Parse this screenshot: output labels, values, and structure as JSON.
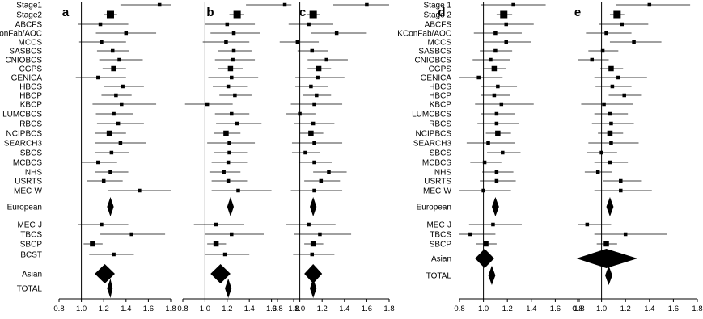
{
  "figure": {
    "left_group_labels": [
      "Stage1",
      "Stage2",
      "ABCFS",
      "KConFab/AOC",
      "MCCS",
      "SASBCS",
      "CNIOBCS",
      "CGPS",
      "GENICA",
      "HBCS",
      "HBCP",
      "KBCP",
      "LUMCBCS",
      "RBCS",
      "NCIPBCS",
      "SEARCH3",
      "SBCS",
      "MCBCS",
      "NHS",
      "USRTS",
      "MEC-W",
      "European",
      "MEC-J",
      "TBCS",
      "SBCP",
      "BCST",
      "Asian",
      "TOTAL"
    ],
    "right_group_labels": [
      "Stage 1",
      "Stage 2",
      "ABCFS",
      "KConFab/AOC",
      "MCCS",
      "SASBCS",
      "CNIOBCS",
      "CGPS",
      "GENICA",
      "HBCS",
      "HBCP",
      "KBCP",
      "LUMCBCS",
      "RBCS",
      "NCIPBCS",
      "SEARCH3",
      "SBCS",
      "MCBCS",
      "NHS",
      "USRTS",
      "MEC-W",
      "European",
      "MEC-J",
      "TBCS",
      "SBCP",
      "Asian",
      "TOTAL"
    ]
  },
  "chart_data": [
    {
      "type": "forest",
      "panel": "a",
      "xlim": [
        0.8,
        1.8
      ],
      "xticks": [
        "0.8",
        "1.0",
        "1.2",
        "1.4",
        "1.6",
        "1.8"
      ],
      "reference_line": 1.0,
      "rows": [
        {
          "study": "Stage1",
          "or": 1.7,
          "lo": 1.35,
          "hi": 1.8
        },
        {
          "study": "Stage2",
          "or": 1.26,
          "lo": 1.2,
          "hi": 1.32
        },
        {
          "study": "ABCFS",
          "or": 1.17,
          "lo": 0.97,
          "hi": 1.42
        },
        {
          "study": "KConFab/AOC",
          "or": 1.4,
          "lo": 1.13,
          "hi": 1.67
        },
        {
          "study": "MCCS",
          "or": 1.18,
          "lo": 0.98,
          "hi": 1.4
        },
        {
          "study": "SASBCS",
          "or": 1.28,
          "lo": 1.14,
          "hi": 1.43
        },
        {
          "study": "CNIOBCS",
          "or": 1.34,
          "lo": 1.16,
          "hi": 1.55
        },
        {
          "study": "CGPS",
          "or": 1.29,
          "lo": 1.19,
          "hi": 1.4
        },
        {
          "study": "GENICA",
          "or": 1.15,
          "lo": 0.95,
          "hi": 1.4
        },
        {
          "study": "HBCS",
          "or": 1.37,
          "lo": 1.2,
          "hi": 1.56
        },
        {
          "study": "HBCP",
          "or": 1.31,
          "lo": 1.18,
          "hi": 1.45
        },
        {
          "study": "KBCP",
          "or": 1.36,
          "lo": 1.1,
          "hi": 1.67
        },
        {
          "study": "LUMCBCS",
          "or": 1.29,
          "lo": 1.13,
          "hi": 1.46
        },
        {
          "study": "RBCS",
          "or": 1.33,
          "lo": 1.14,
          "hi": 1.56
        },
        {
          "study": "NCIPBCS",
          "or": 1.25,
          "lo": 1.12,
          "hi": 1.4
        },
        {
          "study": "SEARCH3",
          "or": 1.35,
          "lo": 1.12,
          "hi": 1.58
        },
        {
          "study": "SBCS",
          "or": 1.27,
          "lo": 1.12,
          "hi": 1.43
        },
        {
          "study": "MCBCS",
          "or": 1.15,
          "lo": 1.0,
          "hi": 1.32
        },
        {
          "study": "NHS",
          "or": 1.26,
          "lo": 1.12,
          "hi": 1.42
        },
        {
          "study": "USRTS",
          "or": 1.2,
          "lo": 1.05,
          "hi": 1.37
        },
        {
          "study": "MEC-W",
          "or": 1.52,
          "lo": 1.24,
          "hi": 1.8
        },
        {
          "study": "European",
          "pooled": true,
          "or": 1.26,
          "lo": 1.23,
          "hi": 1.29
        },
        {
          "study": "MEC-J",
          "or": 1.18,
          "lo": 0.97,
          "hi": 1.42
        },
        {
          "study": "TBCS",
          "or": 1.45,
          "lo": 1.17,
          "hi": 1.75
        },
        {
          "study": "SBCP",
          "or": 1.1,
          "lo": 1.02,
          "hi": 1.19
        },
        {
          "study": "BCST",
          "or": 1.29,
          "lo": 1.07,
          "hi": 1.47
        },
        {
          "study": "Asian",
          "pooled": true,
          "or": 1.21,
          "lo": 1.12,
          "hi": 1.3
        },
        {
          "study": "TOTAL",
          "pooled": true,
          "or": 1.26,
          "lo": 1.23,
          "hi": 1.28
        }
      ]
    },
    {
      "type": "forest",
      "panel": "b",
      "xlim": [
        0.8,
        1.8
      ],
      "xticks": [
        "0.8",
        "1.0",
        "1.2",
        "1.4",
        "1.6",
        "1.8"
      ],
      "reference_line": 1.0,
      "rows": [
        {
          "study": "Stage1",
          "or": 1.72,
          "lo": 1.37,
          "hi": 1.78
        },
        {
          "study": "Stage2",
          "or": 1.29,
          "lo": 1.22,
          "hi": 1.35
        },
        {
          "study": "ABCFS",
          "or": 1.2,
          "lo": 1.0,
          "hi": 1.45
        },
        {
          "study": "KConFab/AOC",
          "or": 1.26,
          "lo": 1.05,
          "hi": 1.5
        },
        {
          "study": "MCCS",
          "or": 1.19,
          "lo": 0.98,
          "hi": 1.4
        },
        {
          "study": "SASBCS",
          "or": 1.26,
          "lo": 1.12,
          "hi": 1.42
        },
        {
          "study": "CNIOBCS",
          "or": 1.25,
          "lo": 1.09,
          "hi": 1.45
        },
        {
          "study": "CGPS",
          "or": 1.23,
          "lo": 1.12,
          "hi": 1.34
        },
        {
          "study": "GENICA",
          "or": 1.24,
          "lo": 1.03,
          "hi": 1.48
        },
        {
          "study": "HBCS",
          "or": 1.21,
          "lo": 1.07,
          "hi": 1.38
        },
        {
          "study": "HBCP",
          "or": 1.27,
          "lo": 1.13,
          "hi": 1.42
        },
        {
          "study": "KBCP",
          "or": 1.02,
          "lo": 0.82,
          "hi": 1.25
        },
        {
          "study": "LUMCBCS",
          "or": 1.24,
          "lo": 1.09,
          "hi": 1.4
        },
        {
          "study": "RBCS",
          "or": 1.29,
          "lo": 1.1,
          "hi": 1.51
        },
        {
          "study": "NCIPBCS",
          "or": 1.19,
          "lo": 1.08,
          "hi": 1.32
        },
        {
          "study": "SEARCH3",
          "or": 1.22,
          "lo": 1.02,
          "hi": 1.45
        },
        {
          "study": "SBCS",
          "or": 1.22,
          "lo": 1.08,
          "hi": 1.38
        },
        {
          "study": "MCBCS",
          "or": 1.21,
          "lo": 1.06,
          "hi": 1.38
        },
        {
          "study": "NHS",
          "or": 1.17,
          "lo": 1.04,
          "hi": 1.32
        },
        {
          "study": "USRTS",
          "or": 1.21,
          "lo": 1.06,
          "hi": 1.38
        },
        {
          "study": "MEC-W",
          "or": 1.3,
          "lo": 1.06,
          "hi": 1.6
        },
        {
          "study": "European",
          "pooled": true,
          "or": 1.23,
          "lo": 1.2,
          "hi": 1.26
        },
        {
          "study": "MEC-J",
          "or": 1.1,
          "lo": 0.9,
          "hi": 1.35
        },
        {
          "study": "TBCS",
          "or": 1.24,
          "lo": 1.0,
          "hi": 1.53
        },
        {
          "study": "SBCP",
          "or": 1.1,
          "lo": 1.02,
          "hi": 1.19
        },
        {
          "study": "BCST",
          "or": 1.18,
          "lo": 1.0,
          "hi": 1.4
        },
        {
          "study": "Asian",
          "pooled": true,
          "or": 1.14,
          "lo": 1.05,
          "hi": 1.23
        },
        {
          "study": "TOTAL",
          "pooled": true,
          "or": 1.21,
          "lo": 1.18,
          "hi": 1.24
        }
      ]
    },
    {
      "type": "forest",
      "panel": "c",
      "xlim": [
        0.8,
        1.8
      ],
      "xticks": [
        "0.8",
        "1.0",
        "1.2",
        "1.4",
        "1.6",
        "1.8"
      ],
      "reference_line": 1.0,
      "rows": [
        {
          "study": "Stage1",
          "or": 1.6,
          "lo": 1.3,
          "hi": 1.8
        },
        {
          "study": "Stage2",
          "or": 1.12,
          "lo": 1.06,
          "hi": 1.18
        },
        {
          "study": "ABCFS",
          "or": 1.08,
          "lo": 0.9,
          "hi": 1.3
        },
        {
          "study": "KConFab/AOC",
          "or": 1.33,
          "lo": 1.1,
          "hi": 1.6
        },
        {
          "study": "MCCS",
          "or": 0.98,
          "lo": 0.82,
          "hi": 1.17
        },
        {
          "study": "SASBCS",
          "or": 1.11,
          "lo": 0.98,
          "hi": 1.25
        },
        {
          "study": "CNIOBCS",
          "or": 1.24,
          "lo": 1.07,
          "hi": 1.43
        },
        {
          "study": "CGPS",
          "or": 1.17,
          "lo": 1.07,
          "hi": 1.28
        },
        {
          "study": "GENICA",
          "or": 1.16,
          "lo": 0.96,
          "hi": 1.4
        },
        {
          "study": "HBCS",
          "or": 1.1,
          "lo": 0.96,
          "hi": 1.25
        },
        {
          "study": "HBCP",
          "or": 1.15,
          "lo": 1.03,
          "hi": 1.28
        },
        {
          "study": "KBCP",
          "or": 1.13,
          "lo": 0.92,
          "hi": 1.38
        },
        {
          "study": "LUMCBCS",
          "or": 1.0,
          "lo": 0.88,
          "hi": 1.14
        },
        {
          "study": "RBCS",
          "or": 1.12,
          "lo": 0.95,
          "hi": 1.31
        },
        {
          "study": "NCIPBCS",
          "or": 1.1,
          "lo": 1.0,
          "hi": 1.21
        },
        {
          "study": "SEARCH3",
          "or": 1.13,
          "lo": 0.93,
          "hi": 1.38
        },
        {
          "study": "SBCS",
          "or": 1.05,
          "lo": 0.93,
          "hi": 1.18
        },
        {
          "study": "MCBCS",
          "or": 1.13,
          "lo": 0.99,
          "hi": 1.29
        },
        {
          "study": "NHS",
          "or": 1.26,
          "lo": 1.12,
          "hi": 1.42
        },
        {
          "study": "USRTS",
          "or": 1.19,
          "lo": 1.04,
          "hi": 1.36
        },
        {
          "study": "MEC-W",
          "or": 1.13,
          "lo": 0.92,
          "hi": 1.38
        },
        {
          "study": "European",
          "pooled": true,
          "or": 1.12,
          "lo": 1.09,
          "hi": 1.15
        },
        {
          "study": "MEC-J",
          "or": 1.08,
          "lo": 0.88,
          "hi": 1.32
        },
        {
          "study": "TBCS",
          "or": 1.18,
          "lo": 0.95,
          "hi": 1.46
        },
        {
          "study": "SBCP",
          "or": 1.12,
          "lo": 1.04,
          "hi": 1.21
        },
        {
          "study": "BCST",
          "or": 1.11,
          "lo": 0.94,
          "hi": 1.31
        },
        {
          "study": "Asian",
          "pooled": true,
          "or": 1.12,
          "lo": 1.04,
          "hi": 1.2
        },
        {
          "study": "TOTAL",
          "pooled": true,
          "or": 1.12,
          "lo": 1.09,
          "hi": 1.15
        }
      ]
    },
    {
      "type": "forest",
      "panel": "d",
      "xlim": [
        0.8,
        1.8
      ],
      "xticks": [
        "0.8",
        "1.0",
        "1.2",
        "1.4",
        "1.6",
        "1.8"
      ],
      "reference_line": 1.0,
      "rows": [
        {
          "study": "Stage 1",
          "or": 1.25,
          "lo": 0.98,
          "hi": 1.52
        },
        {
          "study": "Stage 2",
          "or": 1.17,
          "lo": 1.11,
          "hi": 1.24
        },
        {
          "study": "ABCFS",
          "or": 1.19,
          "lo": 1.0,
          "hi": 1.42
        },
        {
          "study": "KConFab/AOC",
          "or": 1.1,
          "lo": 0.92,
          "hi": 1.32
        },
        {
          "study": "MCCS",
          "or": 1.19,
          "lo": 1.0,
          "hi": 1.4
        },
        {
          "study": "SASBCS",
          "or": 1.1,
          "lo": 0.97,
          "hi": 1.24
        },
        {
          "study": "CNIOBCS",
          "or": 1.06,
          "lo": 0.91,
          "hi": 1.22
        },
        {
          "study": "CGPS",
          "or": 1.09,
          "lo": 1.0,
          "hi": 1.19
        },
        {
          "study": "GENICA",
          "or": 0.96,
          "lo": 0.79,
          "hi": 1.16
        },
        {
          "study": "HBCS",
          "or": 1.12,
          "lo": 0.98,
          "hi": 1.28
        },
        {
          "study": "HBCP",
          "or": 1.09,
          "lo": 0.98,
          "hi": 1.22
        },
        {
          "study": "KBCP",
          "or": 1.15,
          "lo": 0.93,
          "hi": 1.42
        },
        {
          "study": "LUMCBCS",
          "or": 1.11,
          "lo": 0.98,
          "hi": 1.26
        },
        {
          "study": "RBCS",
          "or": 1.11,
          "lo": 0.95,
          "hi": 1.3
        },
        {
          "study": "NCIPBCS",
          "or": 1.12,
          "lo": 1.02,
          "hi": 1.23
        },
        {
          "study": "SEARCH3",
          "or": 1.04,
          "lo": 0.86,
          "hi": 1.26
        },
        {
          "study": "SBCS",
          "or": 1.16,
          "lo": 1.03,
          "hi": 1.31
        },
        {
          "study": "MCBCS",
          "or": 1.01,
          "lo": 0.89,
          "hi": 1.15
        },
        {
          "study": "NHS",
          "or": 1.11,
          "lo": 0.99,
          "hi": 1.25
        },
        {
          "study": "USRTS",
          "or": 1.11,
          "lo": 0.97,
          "hi": 1.27
        },
        {
          "study": "MEC-W",
          "or": 1.0,
          "lo": 0.8,
          "hi": 1.23
        },
        {
          "study": "European",
          "pooled": true,
          "or": 1.1,
          "lo": 1.07,
          "hi": 1.13
        },
        {
          "study": "MEC-J",
          "or": 1.08,
          "lo": 0.88,
          "hi": 1.32
        },
        {
          "study": "TBCS",
          "or": 0.89,
          "lo": 0.8,
          "hi": 1.1
        },
        {
          "study": "SBCP",
          "or": 1.02,
          "lo": 0.94,
          "hi": 1.11
        },
        {
          "study": "Asian",
          "pooled": true,
          "or": 1.01,
          "lo": 0.93,
          "hi": 1.09
        },
        {
          "study": "TOTAL",
          "pooled": true,
          "or": 1.07,
          "lo": 1.04,
          "hi": 1.1
        }
      ]
    },
    {
      "type": "forest",
      "panel": "e",
      "xlim": [
        0.8,
        1.8
      ],
      "xticks": [
        "0.8",
        "1.0",
        "1.2",
        "1.4",
        "1.6",
        "1.8"
      ],
      "reference_line": 1.0,
      "rows": [
        {
          "study": "Stage 1",
          "or": 1.4,
          "lo": 1.12,
          "hi": 1.74
        },
        {
          "study": "Stage 2",
          "or": 1.13,
          "lo": 1.07,
          "hi": 1.19
        },
        {
          "study": "ABCFS",
          "or": 1.17,
          "lo": 0.98,
          "hi": 1.39
        },
        {
          "study": "KConFab/AOC",
          "or": 1.04,
          "lo": 0.87,
          "hi": 1.25
        },
        {
          "study": "MCCS",
          "or": 1.27,
          "lo": 1.07,
          "hi": 1.5
        },
        {
          "study": "SASBCS",
          "or": 1.01,
          "lo": 0.89,
          "hi": 1.14
        },
        {
          "study": "CNIOBCS",
          "or": 0.92,
          "lo": 0.8,
          "hi": 1.06
        },
        {
          "study": "CGPS",
          "or": 1.08,
          "lo": 0.99,
          "hi": 1.18
        },
        {
          "study": "GENICA",
          "or": 1.14,
          "lo": 0.94,
          "hi": 1.38
        },
        {
          "study": "HBCS",
          "or": 1.09,
          "lo": 0.95,
          "hi": 1.25
        },
        {
          "study": "HBCP",
          "or": 1.19,
          "lo": 1.06,
          "hi": 1.33
        },
        {
          "study": "KBCP",
          "or": 1.02,
          "lo": 0.83,
          "hi": 1.26
        },
        {
          "study": "LUMCBCS",
          "or": 1.07,
          "lo": 0.94,
          "hi": 1.22
        },
        {
          "study": "RBCS",
          "or": 1.08,
          "lo": 0.92,
          "hi": 1.27
        },
        {
          "study": "NCIPBCS",
          "or": 1.07,
          "lo": 0.97,
          "hi": 1.18
        },
        {
          "study": "SEARCH3",
          "or": 1.08,
          "lo": 0.89,
          "hi": 1.31
        },
        {
          "study": "SBCS",
          "or": 1.0,
          "lo": 0.88,
          "hi": 1.13
        },
        {
          "study": "MCBCS",
          "or": 1.07,
          "lo": 0.94,
          "hi": 1.22
        },
        {
          "study": "NHS",
          "or": 0.97,
          "lo": 0.86,
          "hi": 1.09
        },
        {
          "study": "USRTS",
          "or": 1.16,
          "lo": 1.01,
          "hi": 1.33
        },
        {
          "study": "MEC-W",
          "or": 1.16,
          "lo": 0.94,
          "hi": 1.42
        },
        {
          "study": "European",
          "pooled": true,
          "or": 1.07,
          "lo": 1.04,
          "hi": 1.1
        },
        {
          "study": "MEC-J",
          "or": 0.88,
          "lo": 0.8,
          "hi": 1.08
        },
        {
          "study": "TBCS",
          "or": 1.2,
          "lo": 0.94,
          "hi": 1.55
        },
        {
          "study": "SBCP",
          "or": 1.04,
          "lo": 0.96,
          "hi": 1.13
        },
        {
          "study": "Asian",
          "pooled": true,
          "or": 1.04,
          "lo": 0.79,
          "hi": 1.3
        },
        {
          "study": "TOTAL",
          "pooled": true,
          "or": 1.06,
          "lo": 1.03,
          "hi": 1.09
        }
      ]
    }
  ]
}
